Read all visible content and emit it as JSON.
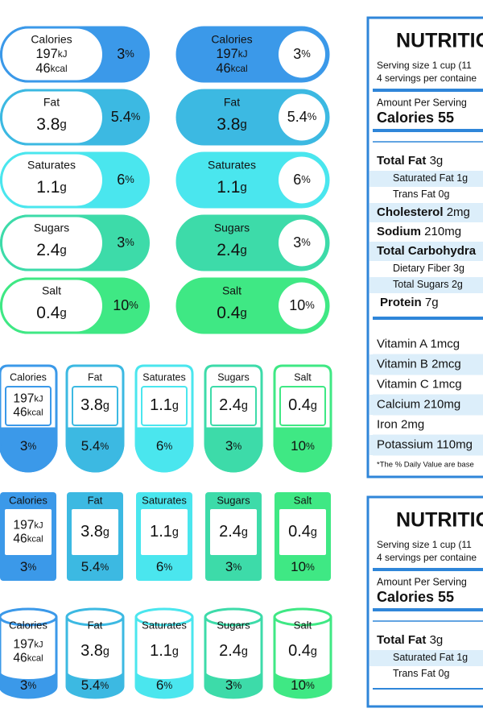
{
  "nutrients": [
    {
      "name": "Calories",
      "amounts": [
        {
          "value": "197",
          "unit": "kJ"
        },
        {
          "value": "46",
          "unit": "kcal"
        }
      ],
      "percent": {
        "value": "3",
        "unit": "%"
      },
      "color": "#3b99e9"
    },
    {
      "name": "Fat",
      "amounts": [
        {
          "value": "3.8",
          "unit": "g"
        }
      ],
      "percent": {
        "value": "5.4",
        "unit": "%"
      },
      "color": "#3cb9e2"
    },
    {
      "name": "Saturates",
      "amounts": [
        {
          "value": "1.1",
          "unit": "g"
        }
      ],
      "percent": {
        "value": "6",
        "unit": "%"
      },
      "color": "#4ae6ee"
    },
    {
      "name": "Sugars",
      "amounts": [
        {
          "value": "2.4",
          "unit": "g"
        }
      ],
      "percent": {
        "value": "3",
        "unit": "%"
      },
      "color": "#3ddba9"
    },
    {
      "name": "Salt",
      "amounts": [
        {
          "value": "0.4",
          "unit": "g"
        }
      ],
      "percent": {
        "value": "10",
        "unit": "%"
      },
      "color": "#3fe884"
    }
  ],
  "labels": [
    {
      "title": "NUTRITIO",
      "serving": [
        "Serving size 1 cup (11",
        "4 servings per containe"
      ],
      "amount_per": "Amount Per Serving",
      "calories": "Calories 55",
      "rows": [
        {
          "label": "Total Fat",
          "amount": "3g",
          "kind": "main"
        },
        {
          "label": "Saturated Fat",
          "amount": "1g",
          "kind": "sub"
        },
        {
          "label": "Trans Fat",
          "amount": "0g",
          "kind": "sub"
        },
        {
          "label": "Cholesterol",
          "amount": "2mg",
          "kind": "main"
        },
        {
          "label": "Sodium",
          "amount": "210mg",
          "kind": "main"
        },
        {
          "label": "Total Carbohydra",
          "kind": "main"
        },
        {
          "label": "Dietary Fiber",
          "amount": "3g",
          "kind": "sub"
        },
        {
          "label": "Total Sugars",
          "amount": "2g",
          "kind": "sub"
        },
        {
          "label": "Protein",
          "amount": "7g",
          "kind": "main"
        }
      ],
      "vitamins": [
        {
          "label": "Vitamin A",
          "amount": "1mcg"
        },
        {
          "label": "Vitamin B",
          "amount": "2mcg"
        },
        {
          "label": "Vitamin C",
          "amount": "1mcg"
        },
        {
          "label": "Calcium",
          "amount": "210mg"
        },
        {
          "label": "Iron",
          "amount": "2mg"
        },
        {
          "label": "Potassium",
          "amount": "110mg"
        }
      ],
      "footnote": "*The % Daily Value are base"
    },
    {
      "title": "NUTRITIO",
      "serving": [
        "Serving size 1 cup (11",
        "4 servings per containe"
      ],
      "amount_per": "Amount Per Serving",
      "calories": "Calories 55",
      "rows": [
        {
          "label": "Total Fat",
          "amount": "3g",
          "kind": "main"
        },
        {
          "label": "Saturated Fat",
          "amount": "1g",
          "kind": "sub"
        },
        {
          "label": "Trans Fat",
          "amount": "0g",
          "kind": "sub"
        }
      ]
    }
  ]
}
